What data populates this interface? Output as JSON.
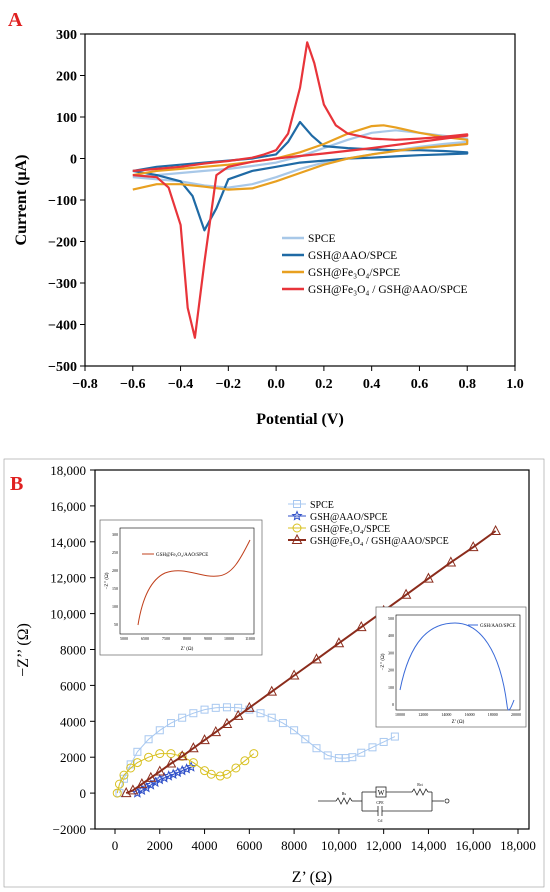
{
  "panels": [
    {
      "letter": "A",
      "letter_color": "#e02020",
      "chart_data": {
        "type": "line",
        "title": "",
        "xlabel": "Potential (V)",
        "ylabel": "Current (μA)",
        "xlim": [
          -0.8,
          1.0
        ],
        "ylim": [
          -500,
          300
        ],
        "xticks": [
          -0.8,
          -0.6,
          -0.4,
          -0.2,
          0.0,
          0.2,
          0.4,
          0.6,
          0.8,
          1.0
        ],
        "xtick_labels": [
          "−0.8",
          "−0.6",
          "−0.4",
          "−0.2",
          "0.0",
          "0.2",
          "0.4",
          "0.6",
          "0.8",
          "1.0"
        ],
        "yticks": [
          -500,
          -400,
          -300,
          -200,
          -100,
          0,
          100,
          200,
          300
        ],
        "ytick_labels": [
          "−500",
          "−400",
          "−300",
          "−200",
          "−100",
          "0",
          "100",
          "200",
          "300"
        ],
        "grid": false,
        "legend_position": "bottom-right",
        "series": [
          {
            "name": "SPCE",
            "color": "#a8c8e8",
            "x": [
              -0.6,
              -0.5,
              -0.4,
              -0.3,
              -0.2,
              -0.1,
              0.0,
              0.1,
              0.2,
              0.3,
              0.4,
              0.5,
              0.6,
              0.7,
              0.8,
              0.8,
              0.7,
              0.6,
              0.5,
              0.4,
              0.3,
              0.2,
              0.1,
              0.0,
              -0.1,
              -0.2,
              -0.3,
              -0.4,
              -0.5,
              -0.6
            ],
            "y": [
              -45,
              -40,
              -35,
              -30,
              -25,
              -18,
              -10,
              5,
              25,
              45,
              62,
              68,
              62,
              55,
              48,
              40,
              35,
              28,
              20,
              10,
              0,
              -10,
              -25,
              -45,
              -62,
              -70,
              -65,
              -55,
              -50,
              -45
            ]
          },
          {
            "name": "GSH@AAO/SPCE",
            "color": "#1f6aa5",
            "x": [
              -0.6,
              -0.5,
              -0.4,
              -0.3,
              -0.2,
              -0.1,
              0.0,
              0.05,
              0.1,
              0.15,
              0.2,
              0.3,
              0.4,
              0.5,
              0.6,
              0.7,
              0.8,
              0.8,
              0.7,
              0.6,
              0.5,
              0.4,
              0.3,
              0.2,
              0.1,
              0.0,
              -0.1,
              -0.2,
              -0.25,
              -0.3,
              -0.35,
              -0.4,
              -0.5,
              -0.6
            ],
            "y": [
              -30,
              -20,
              -15,
              -10,
              -5,
              0,
              10,
              40,
              88,
              55,
              30,
              25,
              22,
              20,
              20,
              18,
              15,
              12,
              10,
              8,
              5,
              2,
              0,
              -5,
              -10,
              -20,
              -30,
              -50,
              -120,
              -173,
              -90,
              -55,
              -40,
              -30
            ]
          },
          {
            "name": "GSH@Fe₃O₄/SPCE",
            "color": "#e8a020",
            "x": [
              -0.6,
              -0.5,
              -0.4,
              -0.3,
              -0.2,
              -0.1,
              0.0,
              0.1,
              0.2,
              0.3,
              0.4,
              0.45,
              0.5,
              0.6,
              0.7,
              0.8,
              0.8,
              0.7,
              0.6,
              0.5,
              0.4,
              0.3,
              0.2,
              0.1,
              0.0,
              -0.1,
              -0.2,
              -0.3,
              -0.4,
              -0.5,
              -0.6
            ],
            "y": [
              -40,
              -30,
              -25,
              -20,
              -15,
              -8,
              0,
              15,
              35,
              60,
              78,
              80,
              75,
              62,
              52,
              45,
              35,
              30,
              25,
              18,
              10,
              0,
              -15,
              -35,
              -55,
              -72,
              -75,
              -68,
              -62,
              -62,
              -75
            ]
          },
          {
            "name": "GSH@Fe₃O₄ / GSH@AAO/SPCE",
            "color": "#e8343a",
            "x": [
              -0.6,
              -0.5,
              -0.4,
              -0.3,
              -0.2,
              -0.1,
              -0.05,
              0.0,
              0.05,
              0.1,
              0.13,
              0.16,
              0.2,
              0.25,
              0.3,
              0.4,
              0.5,
              0.6,
              0.7,
              0.8,
              0.8,
              0.6,
              0.4,
              0.2,
              0.0,
              -0.1,
              -0.2,
              -0.25,
              -0.3,
              -0.34,
              -0.37,
              -0.4,
              -0.45,
              -0.5,
              -0.6
            ],
            "y": [
              -30,
              -25,
              -20,
              -12,
              -6,
              2,
              10,
              20,
              60,
              170,
              280,
              230,
              130,
              80,
              60,
              48,
              45,
              48,
              52,
              58,
              55,
              40,
              25,
              12,
              0,
              -8,
              -20,
              -40,
              -250,
              -432,
              -360,
              -160,
              -70,
              -45,
              -40
            ]
          }
        ]
      }
    },
    {
      "letter": "B",
      "letter_color": "#e02020",
      "chart_data": {
        "type": "scatter",
        "title": "",
        "xlabel": "Z’ (Ω)",
        "ylabel": "−Z’’ (Ω)",
        "xlim": [
          -1000,
          18000
        ],
        "ylim": [
          -2000,
          18000
        ],
        "xticks": [
          0,
          2000,
          4000,
          6000,
          8000,
          10000,
          12000,
          14000,
          16000,
          18000
        ],
        "xtick_labels": [
          "0",
          "2000",
          "4000",
          "6000",
          "8000",
          "10,000",
          "12,000",
          "14,000",
          "16,000",
          "18,000"
        ],
        "yticks": [
          -2000,
          0,
          2000,
          4000,
          6000,
          8000,
          10000,
          12000,
          14000,
          16000,
          18000
        ],
        "ytick_labels": [
          "−2000",
          "0",
          "2000",
          "4000",
          "6000",
          "8000",
          "10,000",
          "12,000",
          "14,000",
          "16,000",
          "18,000"
        ],
        "grid": false,
        "legend_position": "top-right",
        "series": [
          {
            "name": "SPCE",
            "color": "#a8c8f0",
            "marker": "square",
            "x": [
              200,
              400,
              700,
              1000,
              1500,
              2000,
              2500,
              3000,
              3500,
              4000,
              4500,
              5000,
              5500,
              6000,
              6500,
              7000,
              7500,
              8000,
              8500,
              9000,
              9500,
              10000,
              10300,
              10600,
              11000,
              11500,
              12000,
              12500
            ],
            "y": [
              0,
              800,
              1600,
              2300,
              3000,
              3500,
              3900,
              4200,
              4450,
              4650,
              4750,
              4780,
              4750,
              4650,
              4450,
              4200,
              3900,
              3500,
              3000,
              2500,
              2100,
              1950,
              1950,
              2000,
              2250,
              2550,
              2850,
              3150
            ]
          },
          {
            "name": "GSH@AAO/SPCE",
            "color": "#3050c8",
            "marker": "star",
            "x": [
              1000,
              1200,
              1400,
              1600,
              1800,
              2000,
              2200,
              2400,
              2600,
              2800,
              3000,
              3200,
              3400
            ],
            "y": [
              0,
              150,
              300,
              450,
              600,
              750,
              850,
              950,
              1050,
              1150,
              1250,
              1350,
              1450
            ]
          },
          {
            "name": "GSH@Fe₃O₄/SPCE",
            "color": "#d8c020",
            "marker": "circle",
            "x": [
              100,
              200,
              400,
              700,
              1000,
              1500,
              2000,
              2500,
              3000,
              3500,
              4000,
              4300,
              4700,
              5000,
              5400,
              5800,
              6200
            ],
            "y": [
              0,
              500,
              1000,
              1400,
              1700,
              2000,
              2200,
              2200,
              2050,
              1700,
              1250,
              1050,
              950,
              1050,
              1400,
              1800,
              2200
            ]
          },
          {
            "name": "GSH@Fe₃O₄ / GSH@AAO/SPCE",
            "color": "#8b2c1c",
            "marker": "triangle",
            "x": [
              500,
              800,
              1200,
              1600,
              2000,
              2500,
              3000,
              3500,
              4000,
              4500,
              5000,
              5500,
              6000,
              7000,
              8000,
              9000,
              10000,
              11000,
              12000,
              13000,
              14000,
              15000,
              16000,
              17000
            ],
            "y": [
              0,
              150,
              500,
              850,
              1200,
              1650,
              2050,
              2500,
              2950,
              3400,
              3850,
              4300,
              4750,
              5650,
              6550,
              7450,
              8350,
              9250,
              10150,
              11050,
              11950,
              12850,
              13700,
              14600
            ]
          }
        ],
        "inset_left": {
          "legend": "GSH@Fe₃O₄/AAO/SPCE",
          "xlabel": "Z’ (Ω)",
          "ylabel": "−Z’’ (Ω)",
          "xtick_labels": [
            "5000",
            "6500",
            "7500",
            "8000",
            "9000",
            "10000",
            "11000"
          ],
          "ytick_labels": [
            "50",
            "100",
            "150",
            "200",
            "250",
            "300"
          ]
        },
        "inset_right": {
          "legend": "GSH/AAO/SPCE",
          "xlabel": "Z’ (Ω)",
          "ylabel": "−Z’’ (Ω)",
          "xtick_labels": [
            "10000",
            "12000",
            "14000",
            "16000",
            "18000",
            "20000"
          ],
          "ytick_labels": [
            "0",
            "100",
            "200",
            "300",
            "400",
            "500"
          ]
        },
        "circuit_labels": [
          "Rs",
          "W",
          "Rct",
          "CPE",
          "Cd"
        ]
      }
    }
  ]
}
